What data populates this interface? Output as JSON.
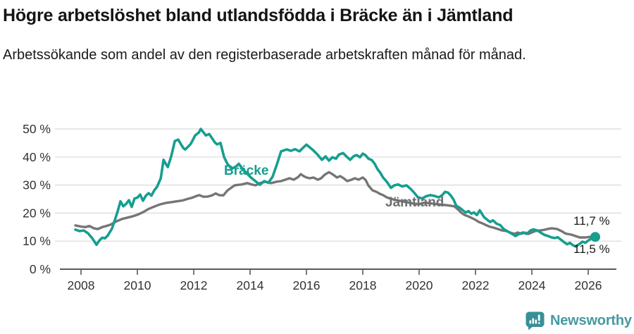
{
  "chart_data": {
    "type": "line",
    "title": "Högre arbetslöshet bland utlandsfödda i Bräcke än i Jämtland",
    "subtitle": "Arbetssökande som andel av den registerbaserade arbetskraften månad för månad.",
    "unit": "%",
    "xlim": [
      2007.7,
      2027.0
    ],
    "ylim": [
      0,
      50
    ],
    "grid": "horizontal",
    "legend": "inline-labels",
    "x_ticks": [
      {
        "v": 2008,
        "label": "2008"
      },
      {
        "v": 2010,
        "label": "2010"
      },
      {
        "v": 2012,
        "label": "2012"
      },
      {
        "v": 2014,
        "label": "2014"
      },
      {
        "v": 2016,
        "label": "2016"
      },
      {
        "v": 2018,
        "label": "2018"
      },
      {
        "v": 2020,
        "label": "2020"
      },
      {
        "v": 2022,
        "label": "2022"
      },
      {
        "v": 2024,
        "label": "2024"
      },
      {
        "v": 2026,
        "label": "2026"
      }
    ],
    "y_ticks": [
      {
        "v": 0,
        "label": "0 %"
      },
      {
        "v": 10,
        "label": "10 %"
      },
      {
        "v": 20,
        "label": "20 %"
      },
      {
        "v": 30,
        "label": "30 %"
      },
      {
        "v": 40,
        "label": "40 %"
      },
      {
        "v": 50,
        "label": "50 %"
      }
    ],
    "series": [
      {
        "name": "Bräcke",
        "color": "#169e8f",
        "stroke_width": 3.6,
        "end_label": "11,5 %",
        "end_dot_radius": 7,
        "points": [
          [
            2007.8,
            14.1
          ],
          [
            2007.95,
            13.6
          ],
          [
            2008.1,
            13.8
          ],
          [
            2008.25,
            12.8
          ],
          [
            2008.4,
            11.0
          ],
          [
            2008.55,
            8.7
          ],
          [
            2008.65,
            10.2
          ],
          [
            2008.75,
            11.2
          ],
          [
            2008.85,
            11.0
          ],
          [
            2008.95,
            12.0
          ],
          [
            2009.1,
            14.5
          ],
          [
            2009.2,
            17.5
          ],
          [
            2009.3,
            20.6
          ],
          [
            2009.4,
            24.2
          ],
          [
            2009.5,
            22.4
          ],
          [
            2009.6,
            23.3
          ],
          [
            2009.7,
            24.6
          ],
          [
            2009.8,
            22.2
          ],
          [
            2009.9,
            25.2
          ],
          [
            2010.0,
            25.5
          ],
          [
            2010.1,
            26.6
          ],
          [
            2010.2,
            24.4
          ],
          [
            2010.3,
            26.2
          ],
          [
            2010.4,
            27.1
          ],
          [
            2010.5,
            26.2
          ],
          [
            2010.6,
            28.1
          ],
          [
            2010.7,
            29.4
          ],
          [
            2010.83,
            32.4
          ],
          [
            2010.93,
            39.0
          ],
          [
            2011.0,
            37.7
          ],
          [
            2011.08,
            36.4
          ],
          [
            2011.2,
            40.2
          ],
          [
            2011.33,
            45.7
          ],
          [
            2011.45,
            46.2
          ],
          [
            2011.55,
            44.5
          ],
          [
            2011.63,
            43.2
          ],
          [
            2011.7,
            42.7
          ],
          [
            2011.8,
            43.7
          ],
          [
            2011.88,
            44.5
          ],
          [
            2011.95,
            45.7
          ],
          [
            2012.05,
            47.7
          ],
          [
            2012.18,
            48.7
          ],
          [
            2012.25,
            50.0
          ],
          [
            2012.33,
            49.0
          ],
          [
            2012.43,
            47.7
          ],
          [
            2012.55,
            48.2
          ],
          [
            2012.63,
            47.0
          ],
          [
            2012.75,
            45.2
          ],
          [
            2012.83,
            44.5
          ],
          [
            2012.95,
            45.0
          ],
          [
            2013.08,
            39.9
          ],
          [
            2013.2,
            37.5
          ],
          [
            2013.35,
            35.8
          ],
          [
            2013.5,
            36.6
          ],
          [
            2013.6,
            37.6
          ],
          [
            2013.75,
            35.5
          ],
          [
            2013.9,
            34.0
          ],
          [
            2014.05,
            32.5
          ],
          [
            2014.2,
            31.3
          ],
          [
            2014.35,
            30.1
          ],
          [
            2014.5,
            31.4
          ],
          [
            2014.65,
            30.8
          ],
          [
            2014.8,
            33.0
          ],
          [
            2014.95,
            37.3
          ],
          [
            2015.1,
            42.0
          ],
          [
            2015.3,
            42.7
          ],
          [
            2015.45,
            42.2
          ],
          [
            2015.6,
            42.8
          ],
          [
            2015.75,
            42.0
          ],
          [
            2015.88,
            43.3
          ],
          [
            2016.0,
            44.4
          ],
          [
            2016.1,
            43.6
          ],
          [
            2016.25,
            42.3
          ],
          [
            2016.4,
            40.8
          ],
          [
            2016.55,
            39.0
          ],
          [
            2016.68,
            40.2
          ],
          [
            2016.8,
            38.7
          ],
          [
            2016.92,
            39.9
          ],
          [
            2017.05,
            39.4
          ],
          [
            2017.15,
            40.8
          ],
          [
            2017.3,
            41.4
          ],
          [
            2017.45,
            39.9
          ],
          [
            2017.55,
            39.0
          ],
          [
            2017.68,
            40.3
          ],
          [
            2017.78,
            40.7
          ],
          [
            2017.9,
            39.9
          ],
          [
            2018.0,
            41.2
          ],
          [
            2018.1,
            40.6
          ],
          [
            2018.2,
            39.4
          ],
          [
            2018.32,
            38.9
          ],
          [
            2018.42,
            37.6
          ],
          [
            2018.52,
            35.7
          ],
          [
            2018.62,
            34.4
          ],
          [
            2018.72,
            32.7
          ],
          [
            2018.85,
            31.2
          ],
          [
            2019.0,
            29.0
          ],
          [
            2019.12,
            29.9
          ],
          [
            2019.25,
            30.2
          ],
          [
            2019.4,
            29.5
          ],
          [
            2019.55,
            29.9
          ],
          [
            2019.7,
            28.6
          ],
          [
            2019.82,
            27.3
          ],
          [
            2019.95,
            25.7
          ],
          [
            2020.1,
            25.2
          ],
          [
            2020.25,
            26.0
          ],
          [
            2020.4,
            26.4
          ],
          [
            2020.55,
            26.1
          ],
          [
            2020.7,
            25.6
          ],
          [
            2020.82,
            26.4
          ],
          [
            2020.92,
            27.6
          ],
          [
            2021.02,
            27.3
          ],
          [
            2021.12,
            26.3
          ],
          [
            2021.22,
            24.8
          ],
          [
            2021.32,
            22.6
          ],
          [
            2021.45,
            21.8
          ],
          [
            2021.55,
            21.0
          ],
          [
            2021.65,
            20.2
          ],
          [
            2021.75,
            20.7
          ],
          [
            2021.85,
            19.8
          ],
          [
            2021.95,
            20.2
          ],
          [
            2022.05,
            19.3
          ],
          [
            2022.15,
            21.0
          ],
          [
            2022.3,
            18.6
          ],
          [
            2022.42,
            17.6
          ],
          [
            2022.52,
            16.8
          ],
          [
            2022.62,
            17.4
          ],
          [
            2022.75,
            16.2
          ],
          [
            2022.88,
            15.7
          ],
          [
            2023.0,
            14.3
          ],
          [
            2023.12,
            13.6
          ],
          [
            2023.28,
            12.7
          ],
          [
            2023.42,
            11.8
          ],
          [
            2023.55,
            12.6
          ],
          [
            2023.68,
            13.1
          ],
          [
            2023.82,
            12.6
          ],
          [
            2023.95,
            13.8
          ],
          [
            2024.05,
            14.2
          ],
          [
            2024.2,
            13.8
          ],
          [
            2024.32,
            13.0
          ],
          [
            2024.45,
            12.2
          ],
          [
            2024.58,
            11.8
          ],
          [
            2024.7,
            11.3
          ],
          [
            2024.82,
            11.1
          ],
          [
            2024.92,
            11.4
          ],
          [
            2025.02,
            10.6
          ],
          [
            2025.12,
            9.8
          ],
          [
            2025.25,
            8.9
          ],
          [
            2025.35,
            9.4
          ],
          [
            2025.45,
            8.6
          ],
          [
            2025.55,
            8.1
          ],
          [
            2025.68,
            8.9
          ],
          [
            2025.8,
            9.8
          ],
          [
            2025.9,
            9.4
          ],
          [
            2026.0,
            10.2
          ],
          [
            2026.12,
            11.0
          ],
          [
            2026.25,
            11.5
          ]
        ]
      },
      {
        "name": "Jämtland",
        "color": "#757575",
        "stroke_width": 3.4,
        "end_label": "11,7 %",
        "end_dot_radius": 5,
        "points": [
          [
            2007.8,
            15.6
          ],
          [
            2008.0,
            15.2
          ],
          [
            2008.15,
            15.0
          ],
          [
            2008.3,
            15.4
          ],
          [
            2008.45,
            14.6
          ],
          [
            2008.6,
            14.3
          ],
          [
            2008.75,
            15.0
          ],
          [
            2008.9,
            15.4
          ],
          [
            2009.05,
            15.9
          ],
          [
            2009.25,
            17.0
          ],
          [
            2009.45,
            17.9
          ],
          [
            2009.65,
            18.4
          ],
          [
            2009.85,
            18.9
          ],
          [
            2010.0,
            19.4
          ],
          [
            2010.2,
            20.3
          ],
          [
            2010.4,
            21.5
          ],
          [
            2010.6,
            22.3
          ],
          [
            2010.8,
            23.1
          ],
          [
            2011.0,
            23.6
          ],
          [
            2011.2,
            23.9
          ],
          [
            2011.4,
            24.2
          ],
          [
            2011.6,
            24.5
          ],
          [
            2011.8,
            25.1
          ],
          [
            2011.95,
            25.5
          ],
          [
            2012.1,
            26.1
          ],
          [
            2012.2,
            26.4
          ],
          [
            2012.35,
            25.8
          ],
          [
            2012.5,
            25.9
          ],
          [
            2012.65,
            26.3
          ],
          [
            2012.78,
            27.0
          ],
          [
            2012.9,
            26.4
          ],
          [
            2013.05,
            26.3
          ],
          [
            2013.2,
            28.1
          ],
          [
            2013.45,
            29.9
          ],
          [
            2013.7,
            30.2
          ],
          [
            2013.9,
            30.7
          ],
          [
            2014.05,
            30.2
          ],
          [
            2014.2,
            29.9
          ],
          [
            2014.35,
            30.7
          ],
          [
            2014.55,
            31.2
          ],
          [
            2014.75,
            30.7
          ],
          [
            2014.95,
            31.2
          ],
          [
            2015.1,
            31.4
          ],
          [
            2015.25,
            31.9
          ],
          [
            2015.4,
            32.4
          ],
          [
            2015.55,
            31.9
          ],
          [
            2015.7,
            32.8
          ],
          [
            2015.8,
            33.9
          ],
          [
            2015.9,
            33.2
          ],
          [
            2016.0,
            32.7
          ],
          [
            2016.12,
            32.4
          ],
          [
            2016.25,
            32.7
          ],
          [
            2016.4,
            31.9
          ],
          [
            2016.52,
            32.4
          ],
          [
            2016.65,
            33.7
          ],
          [
            2016.8,
            34.6
          ],
          [
            2016.95,
            33.7
          ],
          [
            2017.08,
            32.7
          ],
          [
            2017.2,
            33.2
          ],
          [
            2017.32,
            32.4
          ],
          [
            2017.45,
            31.4
          ],
          [
            2017.6,
            31.9
          ],
          [
            2017.72,
            32.4
          ],
          [
            2017.85,
            31.9
          ],
          [
            2018.0,
            32.7
          ],
          [
            2018.1,
            31.8
          ],
          [
            2018.2,
            29.8
          ],
          [
            2018.35,
            28.1
          ],
          [
            2018.48,
            27.6
          ],
          [
            2018.6,
            26.9
          ],
          [
            2018.72,
            26.4
          ],
          [
            2018.85,
            25.6
          ],
          [
            2019.0,
            25.1
          ],
          [
            2019.2,
            24.6
          ],
          [
            2019.4,
            24.2
          ],
          [
            2019.6,
            23.8
          ],
          [
            2019.8,
            23.4
          ],
          [
            2020.0,
            23.2
          ],
          [
            2020.2,
            23.7
          ],
          [
            2020.4,
            23.5
          ],
          [
            2020.6,
            23.2
          ],
          [
            2020.8,
            23.0
          ],
          [
            2021.0,
            22.8
          ],
          [
            2021.25,
            22.4
          ],
          [
            2021.4,
            21.1
          ],
          [
            2021.5,
            20.1
          ],
          [
            2021.62,
            19.3
          ],
          [
            2021.75,
            18.8
          ],
          [
            2021.9,
            18.1
          ],
          [
            2022.0,
            17.6
          ],
          [
            2022.12,
            16.8
          ],
          [
            2022.25,
            16.3
          ],
          [
            2022.4,
            15.6
          ],
          [
            2022.52,
            15.1
          ],
          [
            2022.65,
            14.8
          ],
          [
            2022.8,
            14.3
          ],
          [
            2022.95,
            13.8
          ],
          [
            2023.1,
            13.6
          ],
          [
            2023.22,
            13.1
          ],
          [
            2023.38,
            12.6
          ],
          [
            2023.5,
            13.1
          ],
          [
            2023.62,
            12.6
          ],
          [
            2023.75,
            13.1
          ],
          [
            2023.88,
            12.6
          ],
          [
            2024.0,
            13.1
          ],
          [
            2024.12,
            13.6
          ],
          [
            2024.28,
            13.8
          ],
          [
            2024.42,
            14.0
          ],
          [
            2024.55,
            14.3
          ],
          [
            2024.7,
            14.6
          ],
          [
            2024.9,
            14.3
          ],
          [
            2025.05,
            13.6
          ],
          [
            2025.2,
            12.7
          ],
          [
            2025.4,
            12.3
          ],
          [
            2025.55,
            11.8
          ],
          [
            2025.7,
            11.3
          ],
          [
            2025.9,
            11.3
          ],
          [
            2026.05,
            11.5
          ],
          [
            2026.25,
            11.7
          ]
        ]
      }
    ]
  },
  "footer": {
    "brand": "Newsworthy"
  }
}
